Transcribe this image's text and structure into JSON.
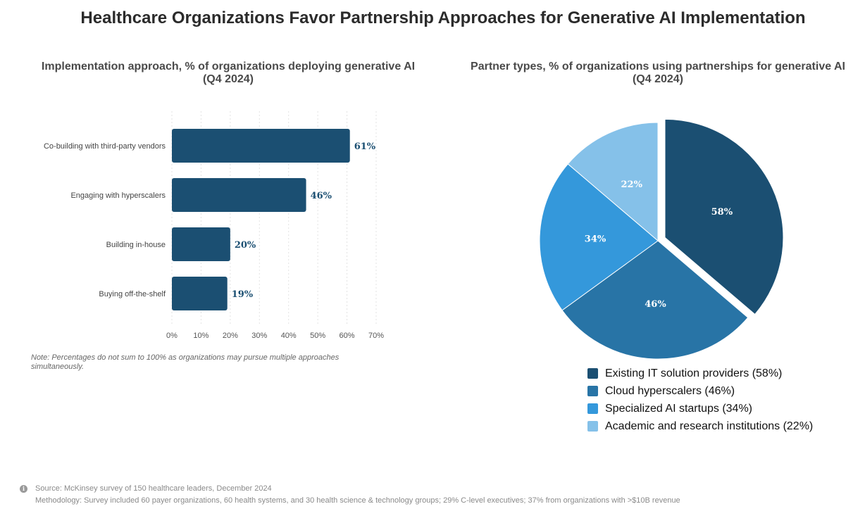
{
  "title": "Healthcare Organizations Favor Partnership Approaches for Generative AI Implementation",
  "note": "Note: Percentages do not sum to 100% as organizations may pursue multiple approaches simultaneously.",
  "footer": {
    "info_icon": "info-icon",
    "source": "Source: McKinsey survey of 150 healthcare leaders, December 2024",
    "methodology": "Methodology: Survey included 60 payer organizations, 60 health systems, and 30 health science & technology groups; 29% C-level executives; 37% from organizations with >$10B revenue"
  },
  "chart_data": [
    {
      "type": "bar",
      "orientation": "horizontal",
      "title": "Implementation approach, % of organizations deploying generative AI",
      "subtitle": "(Q4 2024)",
      "categories": [
        "Co-building with third-party vendors",
        "Engaging with hyperscalers",
        "Building in-house",
        "Buying off-the-shelf"
      ],
      "values": [
        61,
        46,
        20,
        19
      ],
      "value_labels": [
        "61%",
        "46%",
        "20%",
        "19%"
      ],
      "xlim": [
        0,
        70
      ],
      "xticks": [
        0,
        10,
        20,
        30,
        40,
        50,
        60,
        70
      ],
      "xtick_labels": [
        "0%",
        "10%",
        "20%",
        "30%",
        "40%",
        "50%",
        "60%",
        "70%"
      ],
      "grid": "vertical dotted",
      "color": "#1b4f72"
    },
    {
      "type": "pie",
      "title": "Partner types, % of organizations using partnerships for generative AI",
      "subtitle": "(Q4 2024)",
      "exploded_slice": "Existing IT solution providers",
      "slices": [
        {
          "name": "Existing IT solution providers",
          "value": 58,
          "label": "58%",
          "legend": "Existing IT solution providers (58%)",
          "color": "#1b4f72"
        },
        {
          "name": "Cloud hyperscalers",
          "value": 46,
          "label": "46%",
          "legend": "Cloud hyperscalers (46%)",
          "color": "#2874a6"
        },
        {
          "name": "Specialized AI startups",
          "value": 34,
          "label": "34%",
          "legend": "Specialized AI startups (34%)",
          "color": "#3498db"
        },
        {
          "name": "Academic and research institutions",
          "value": 22,
          "label": "22%",
          "legend": "Academic and research institutions (22%)",
          "color": "#85c1e9"
        }
      ],
      "legend_position": "bottom"
    }
  ]
}
